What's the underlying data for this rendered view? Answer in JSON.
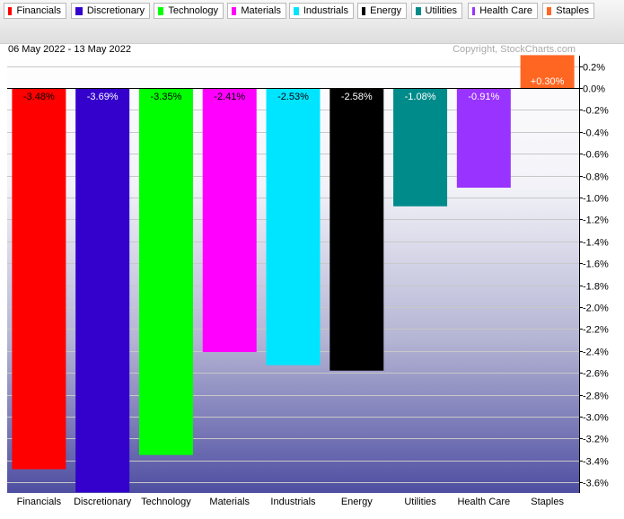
{
  "date_range": "06 May 2022 - 13 May 2022",
  "copyright": "Copyright, StockCharts.com",
  "legend": [
    {
      "label": "Financials",
      "color": "#ff0000"
    },
    {
      "label": "Discretionary",
      "color": "#3300cc"
    },
    {
      "label": "Technology",
      "color": "#00ff00"
    },
    {
      "label": "Materials",
      "color": "#ff00ff"
    },
    {
      "label": "Industrials",
      "color": "#00e5ff"
    },
    {
      "label": "Energy",
      "color": "#000000"
    },
    {
      "label": "Utilities",
      "color": "#008b8b"
    },
    {
      "label": "Health Care",
      "color": "#9933ff"
    },
    {
      "label": "Staples",
      "color": "#ff6622"
    }
  ],
  "chart_data": {
    "type": "bar",
    "categories": [
      "Financials",
      "Discretionary",
      "Technology",
      "Materials",
      "Industrials",
      "Energy",
      "Utilities",
      "Health Care",
      "Staples"
    ],
    "values": [
      -3.48,
      -3.69,
      -3.35,
      -2.41,
      -2.53,
      -2.58,
      -1.08,
      -0.91,
      0.3
    ],
    "value_labels": [
      "-3.48%",
      "-3.69%",
      "-3.35%",
      "-2.41%",
      "-2.53%",
      "-2.58%",
      "-1.08%",
      "-0.91%",
      "+0.30%"
    ],
    "colors": [
      "#ff0000",
      "#3300cc",
      "#00ff00",
      "#ff00ff",
      "#00e5ff",
      "#000000",
      "#008b8b",
      "#9933ff",
      "#ff6622"
    ],
    "label_colors": [
      "#000000",
      "#ffffff",
      "#000000",
      "#000000",
      "#000000",
      "#ffffff",
      "#ffffff",
      "#ffffff",
      "#ffffff"
    ],
    "y_ticks": [
      0.2,
      0.0,
      -0.2,
      -0.4,
      -0.6,
      -0.8,
      -1.0,
      -1.2,
      -1.4,
      -1.6,
      -1.8,
      -2.0,
      -2.2,
      -2.4,
      -2.6,
      -2.8,
      -3.0,
      -3.2,
      -3.4,
      -3.6
    ],
    "y_tick_labels": [
      "0.2%",
      "0.0%",
      "-0.2%",
      "-0.4%",
      "-0.6%",
      "-0.8%",
      "-1.0%",
      "-1.2%",
      "-1.4%",
      "-1.6%",
      "-1.8%",
      "-2.0%",
      "-2.2%",
      "-2.4%",
      "-2.6%",
      "-2.8%",
      "-3.0%",
      "-3.2%",
      "-3.4%",
      "-3.6%"
    ],
    "ylim": [
      -3.7,
      0.3
    ],
    "y_axis_side": "right",
    "grid": true
  }
}
